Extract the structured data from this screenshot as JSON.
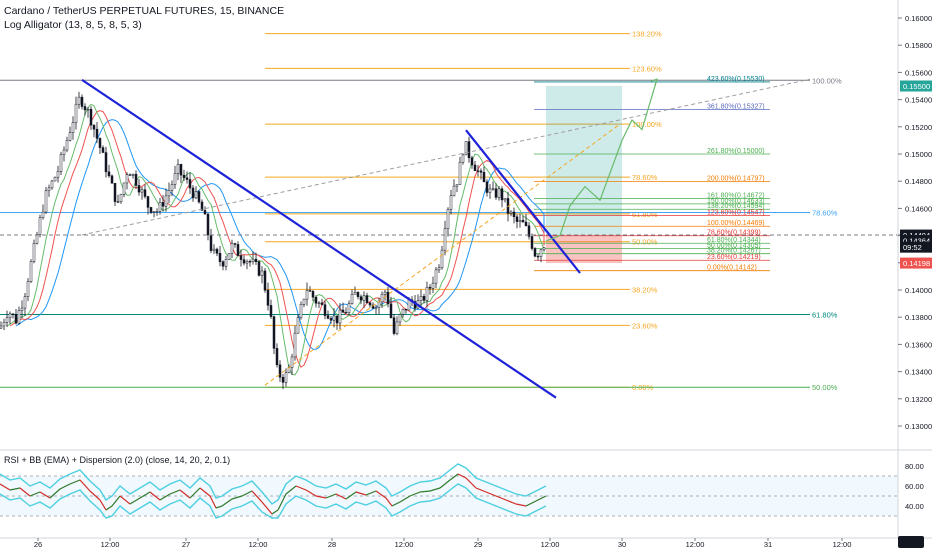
{
  "header": {
    "symbol": "Cardano / TetherUS PERPETUAL FUTURES, 15, BINANCE",
    "indicator": "Log Alligator (13, 8, 5, 8, 5, 3)",
    "rsi_indicator": "RSI + BB (EMA) + Dispersion (2.0) (close, 14, 20, 2, 0.1)"
  },
  "colors": {
    "trendline": "#1e22d8",
    "fib_orange": "#f5a623",
    "fib_green": "#4caf50",
    "fib_teal": "#00897b",
    "fib_blue": "#42a5f5",
    "fib_red": "#e53935",
    "fib_gray": "#787b86",
    "candle": "#131722",
    "jaw": "#2196f3",
    "teeth": "#ef5350",
    "lips": "#66bb6a",
    "rsi_band": "#4dd0e1",
    "target_box": "#26a69a",
    "stop_box": "#ef5350"
  },
  "chart_data": {
    "type": "candlestick",
    "title": "Cardano / TetherUS PERPETUAL FUTURES, 15, BINANCE",
    "xlabel": "",
    "ylabel": "",
    "ylim": [
      0.1296,
      0.1611
    ],
    "grid": false,
    "x_ticks": [
      "26",
      "12:00",
      "27",
      "12:00",
      "28",
      "12:00",
      "29",
      "12:00",
      "30",
      "12:00",
      "31",
      "12:00"
    ],
    "y_ticks": [
      "0.16000",
      "0.15800",
      "0.15600",
      "0.15400",
      "0.15200",
      "0.15000",
      "0.14800",
      "0.14600",
      "0.14400",
      "0.14200",
      "0.14000",
      "0.13800",
      "0.13600",
      "0.13400",
      "0.13200",
      "0.13000"
    ],
    "price_tags": [
      {
        "label": "0.15500",
        "value": 0.155,
        "color": "#26a69a"
      },
      {
        "label": "0.14404",
        "value": 0.14404,
        "color": "#131722"
      },
      {
        "label": "0.14364",
        "value": 0.14364,
        "color": "#131722"
      },
      {
        "label": "09:52",
        "value": 0.14315,
        "color": "#131722"
      },
      {
        "label": "0.14198",
        "value": 0.14198,
        "color": "#ef5350"
      }
    ],
    "price_path": [
      [
        0,
        0.1372
      ],
      [
        8,
        0.1385
      ],
      [
        16,
        0.1378
      ],
      [
        24,
        0.1395
      ],
      [
        34,
        0.143
      ],
      [
        45,
        0.1468
      ],
      [
        58,
        0.1488
      ],
      [
        70,
        0.1518
      ],
      [
        80,
        0.1542
      ],
      [
        90,
        0.1528
      ],
      [
        100,
        0.1505
      ],
      [
        110,
        0.148
      ],
      [
        118,
        0.1462
      ],
      [
        128,
        0.149
      ],
      [
        138,
        0.1478
      ],
      [
        148,
        0.1462
      ],
      [
        158,
        0.1458
      ],
      [
        168,
        0.1472
      ],
      [
        178,
        0.1488
      ],
      [
        188,
        0.1478
      ],
      [
        196,
        0.1468
      ],
      [
        204,
        0.1455
      ],
      [
        212,
        0.1428
      ],
      [
        222,
        0.142
      ],
      [
        232,
        0.1432
      ],
      [
        242,
        0.1425
      ],
      [
        252,
        0.142
      ],
      [
        262,
        0.1412
      ],
      [
        270,
        0.1385
      ],
      [
        276,
        0.1342
      ],
      [
        282,
        0.1335
      ],
      [
        288,
        0.1338
      ],
      [
        296,
        0.137
      ],
      [
        306,
        0.1402
      ],
      [
        316,
        0.1392
      ],
      [
        326,
        0.1385
      ],
      [
        336,
        0.1378
      ],
      [
        346,
        0.1385
      ],
      [
        356,
        0.1398
      ],
      [
        366,
        0.1395
      ],
      [
        376,
        0.1388
      ],
      [
        386,
        0.14
      ],
      [
        394,
        0.1368
      ],
      [
        400,
        0.138
      ],
      [
        410,
        0.1392
      ],
      [
        420,
        0.139
      ],
      [
        430,
        0.1402
      ],
      [
        440,
        0.1422
      ],
      [
        446,
        0.1455
      ],
      [
        452,
        0.1475
      ],
      [
        458,
        0.1482
      ],
      [
        464,
        0.1508
      ],
      [
        470,
        0.1498
      ],
      [
        476,
        0.149
      ],
      [
        484,
        0.1478
      ],
      [
        492,
        0.147
      ],
      [
        500,
        0.1472
      ],
      [
        508,
        0.1458
      ],
      [
        516,
        0.145
      ],
      [
        524,
        0.1448
      ],
      [
        530,
        0.1438
      ],
      [
        536,
        0.1425
      ],
      [
        540,
        0.143
      ],
      [
        546,
        0.1436
      ]
    ],
    "projection_path": [
      [
        546,
        0.1436
      ],
      [
        560,
        0.144
      ],
      [
        570,
        0.1462
      ],
      [
        585,
        0.1476
      ],
      [
        600,
        0.1466
      ],
      [
        612,
        0.149
      ],
      [
        622,
        0.151
      ],
      [
        632,
        0.1525
      ],
      [
        642,
        0.1518
      ],
      [
        657,
        0.1555
      ]
    ],
    "trendlines": [
      {
        "from": [
          82,
          0.15545
        ],
        "to": [
          556,
          0.13208
        ],
        "color": "#1e22d8"
      },
      {
        "from": [
          466,
          0.15175
        ],
        "to": [
          580,
          0.14125
        ],
        "color": "#1e22d8"
      }
    ],
    "dashed_lines": [
      {
        "from": [
          0,
          0.14404
        ],
        "to": [
          900,
          0.14404
        ],
        "color": "#787b86"
      },
      {
        "from": [
          82,
          0.14405
        ],
        "to": [
          810,
          0.1555
        ],
        "color": "#9e9e9e"
      },
      {
        "from": [
          265,
          0.133
        ],
        "to": [
          620,
          0.1522
        ],
        "color": "#f5a623"
      }
    ],
    "horizontal_levels": [
      {
        "label": "138.20%",
        "value": 0.15885,
        "x1": 265,
        "x2": 630,
        "color": "#f5a623"
      },
      {
        "label": "123.60%",
        "value": 0.1563,
        "x1": 265,
        "x2": 630,
        "color": "#f5a623"
      },
      {
        "label": "100.00%",
        "value": 0.1522,
        "x1": 265,
        "x2": 630,
        "color": "#f5a623"
      },
      {
        "label": "78.60%",
        "value": 0.1483,
        "x1": 265,
        "x2": 630,
        "color": "#f5a623"
      },
      {
        "label": "61.80%",
        "value": 0.1456,
        "x1": 265,
        "x2": 630,
        "color": "#f5a623"
      },
      {
        "label": "50.00%",
        "value": 0.14355,
        "x1": 265,
        "x2": 630,
        "color": "#f5a623"
      },
      {
        "label": "38.20%",
        "value": 0.14005,
        "x1": 265,
        "x2": 630,
        "color": "#f5a623"
      },
      {
        "label": "23.60%",
        "value": 0.1374,
        "x1": 265,
        "x2": 630,
        "color": "#f5a623"
      },
      {
        "label": "0.00%",
        "value": 0.13285,
        "x1": 265,
        "x2": 630,
        "color": "#f5a623"
      },
      {
        "label": "100.00%",
        "value": 0.15542,
        "x1": 0,
        "x2": 810,
        "color": "#787b86"
      },
      {
        "label": "78.60%",
        "value": 0.1457,
        "x1": 0,
        "x2": 810,
        "color": "#42a5f5"
      },
      {
        "label": "61.80%",
        "value": 0.1382,
        "x1": 0,
        "x2": 810,
        "color": "#00897b"
      },
      {
        "label": "50.00%",
        "value": 0.13285,
        "x1": 0,
        "x2": 810,
        "color": "#4caf50"
      }
    ],
    "extension_levels": [
      {
        "label": "423.60%(0.15530)",
        "value": 0.1553,
        "color": "#00838f"
      },
      {
        "label": "361.80%(0.15327)",
        "value": 0.15327,
        "color": "#5c6bc0"
      },
      {
        "label": "261.80%(0.15000)",
        "value": 0.15,
        "color": "#4caf50"
      },
      {
        "label": "200.00%(0.14797)",
        "value": 0.14797,
        "color": "#f57c00"
      },
      {
        "label": "161.80%(0.14672)",
        "value": 0.14672,
        "color": "#4caf50"
      },
      {
        "label": "150.00%(0.14633)",
        "value": 0.14633,
        "color": "#4caf50"
      },
      {
        "label": "138.20%(0.14594)",
        "value": 0.14594,
        "color": "#4caf50"
      },
      {
        "label": "123.60%(0.14547)",
        "value": 0.14547,
        "color": "#e53935"
      },
      {
        "label": "100.00%(0.14469)",
        "value": 0.14469,
        "color": "#f57c00"
      },
      {
        "label": "78.60%(0.14399)",
        "value": 0.14399,
        "color": "#e53935"
      },
      {
        "label": "61.80%(0.14344)",
        "value": 0.14344,
        "color": "#4caf50"
      },
      {
        "label": "50.00%(0.14305)",
        "value": 0.14305,
        "color": "#4caf50"
      },
      {
        "label": "38.20%(0.14267)",
        "value": 0.14267,
        "color": "#4caf50"
      },
      {
        "label": "23.60%(0.14219)",
        "value": 0.14219,
        "color": "#e53935"
      },
      {
        "label": "0.00%(0.14142)",
        "value": 0.14142,
        "color": "#f57c00"
      }
    ],
    "position_box": {
      "x1": 546,
      "x2": 622,
      "entry": 0.14404,
      "target": 0.155,
      "stop": 0.14198
    },
    "rsi": {
      "ylim": [
        25,
        90
      ],
      "y_ticks": [
        "80.00",
        "60.00",
        "40.00"
      ],
      "levels": [
        70,
        50,
        30
      ],
      "series": [
        [
          0,
          62
        ],
        [
          10,
          56
        ],
        [
          20,
          58
        ],
        [
          30,
          50
        ],
        [
          40,
          54
        ],
        [
          50,
          48
        ],
        [
          60,
          57
        ],
        [
          70,
          62
        ],
        [
          80,
          66
        ],
        [
          90,
          55
        ],
        [
          100,
          46
        ],
        [
          106,
          36
        ],
        [
          112,
          40
        ],
        [
          120,
          50
        ],
        [
          130,
          42
        ],
        [
          140,
          48
        ],
        [
          150,
          54
        ],
        [
          160,
          46
        ],
        [
          170,
          52
        ],
        [
          180,
          56
        ],
        [
          190,
          48
        ],
        [
          200,
          58
        ],
        [
          210,
          50
        ],
        [
          216,
          38
        ],
        [
          222,
          40
        ],
        [
          232,
          47
        ],
        [
          242,
          50
        ],
        [
          252,
          55
        ],
        [
          262,
          44
        ],
        [
          272,
          32
        ],
        [
          278,
          36
        ],
        [
          286,
          52
        ],
        [
          296,
          60
        ],
        [
          306,
          56
        ],
        [
          316,
          50
        ],
        [
          326,
          48
        ],
        [
          336,
          52
        ],
        [
          346,
          47
        ],
        [
          356,
          54
        ],
        [
          366,
          51
        ],
        [
          376,
          55
        ],
        [
          386,
          48
        ],
        [
          392,
          40
        ],
        [
          400,
          44
        ],
        [
          410,
          50
        ],
        [
          420,
          54
        ],
        [
          430,
          55
        ],
        [
          440,
          58
        ],
        [
          450,
          66
        ],
        [
          458,
          72
        ],
        [
          466,
          68
        ],
        [
          476,
          58
        ],
        [
          486,
          54
        ],
        [
          496,
          50
        ],
        [
          506,
          46
        ],
        [
          516,
          42
        ],
        [
          526,
          40
        ],
        [
          536,
          45
        ],
        [
          546,
          50
        ]
      ]
    }
  }
}
